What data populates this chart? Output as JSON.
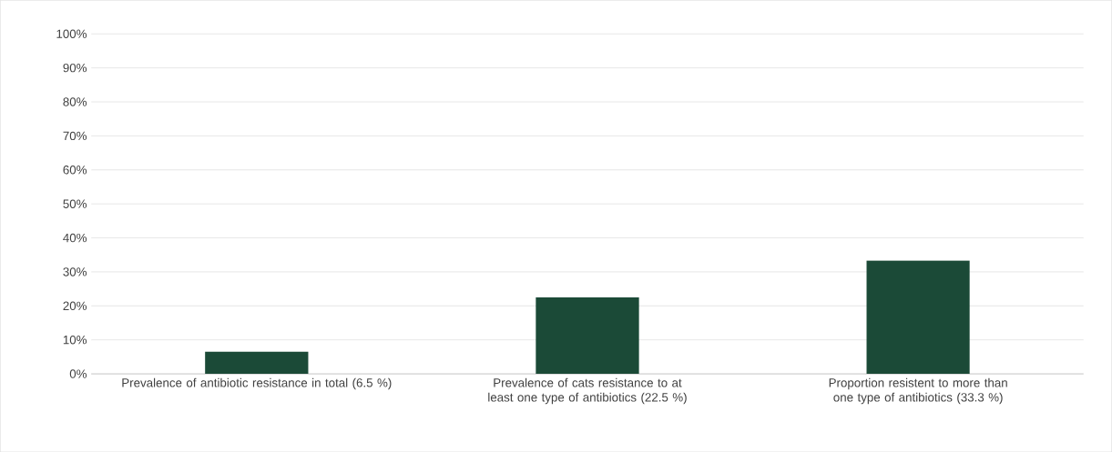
{
  "chart_data": {
    "type": "bar",
    "categories": [
      "Prevalence of antibiotic resistance in total (6.5 %)",
      "Prevalence of cats resistance to at least one type of antibiotics (22.5 %)",
      "Proportion resistent to more than one type of antibiotics (33.3 %)"
    ],
    "values": [
      6.5,
      22.5,
      33.3
    ],
    "color": "#1b4a37",
    "ylim": [
      0,
      100
    ],
    "yticks": [
      {
        "value": 0,
        "label": "0%"
      },
      {
        "value": 10,
        "label": "10%"
      },
      {
        "value": 20,
        "label": "20%"
      },
      {
        "value": 30,
        "label": "30%"
      },
      {
        "value": 40,
        "label": "40%"
      },
      {
        "value": 50,
        "label": "50%"
      },
      {
        "value": 60,
        "label": "60%"
      },
      {
        "value": 70,
        "label": "70%"
      },
      {
        "value": 80,
        "label": "80%"
      },
      {
        "value": 90,
        "label": "90%"
      },
      {
        "value": 100,
        "label": "100%"
      }
    ],
    "grid": "y"
  }
}
